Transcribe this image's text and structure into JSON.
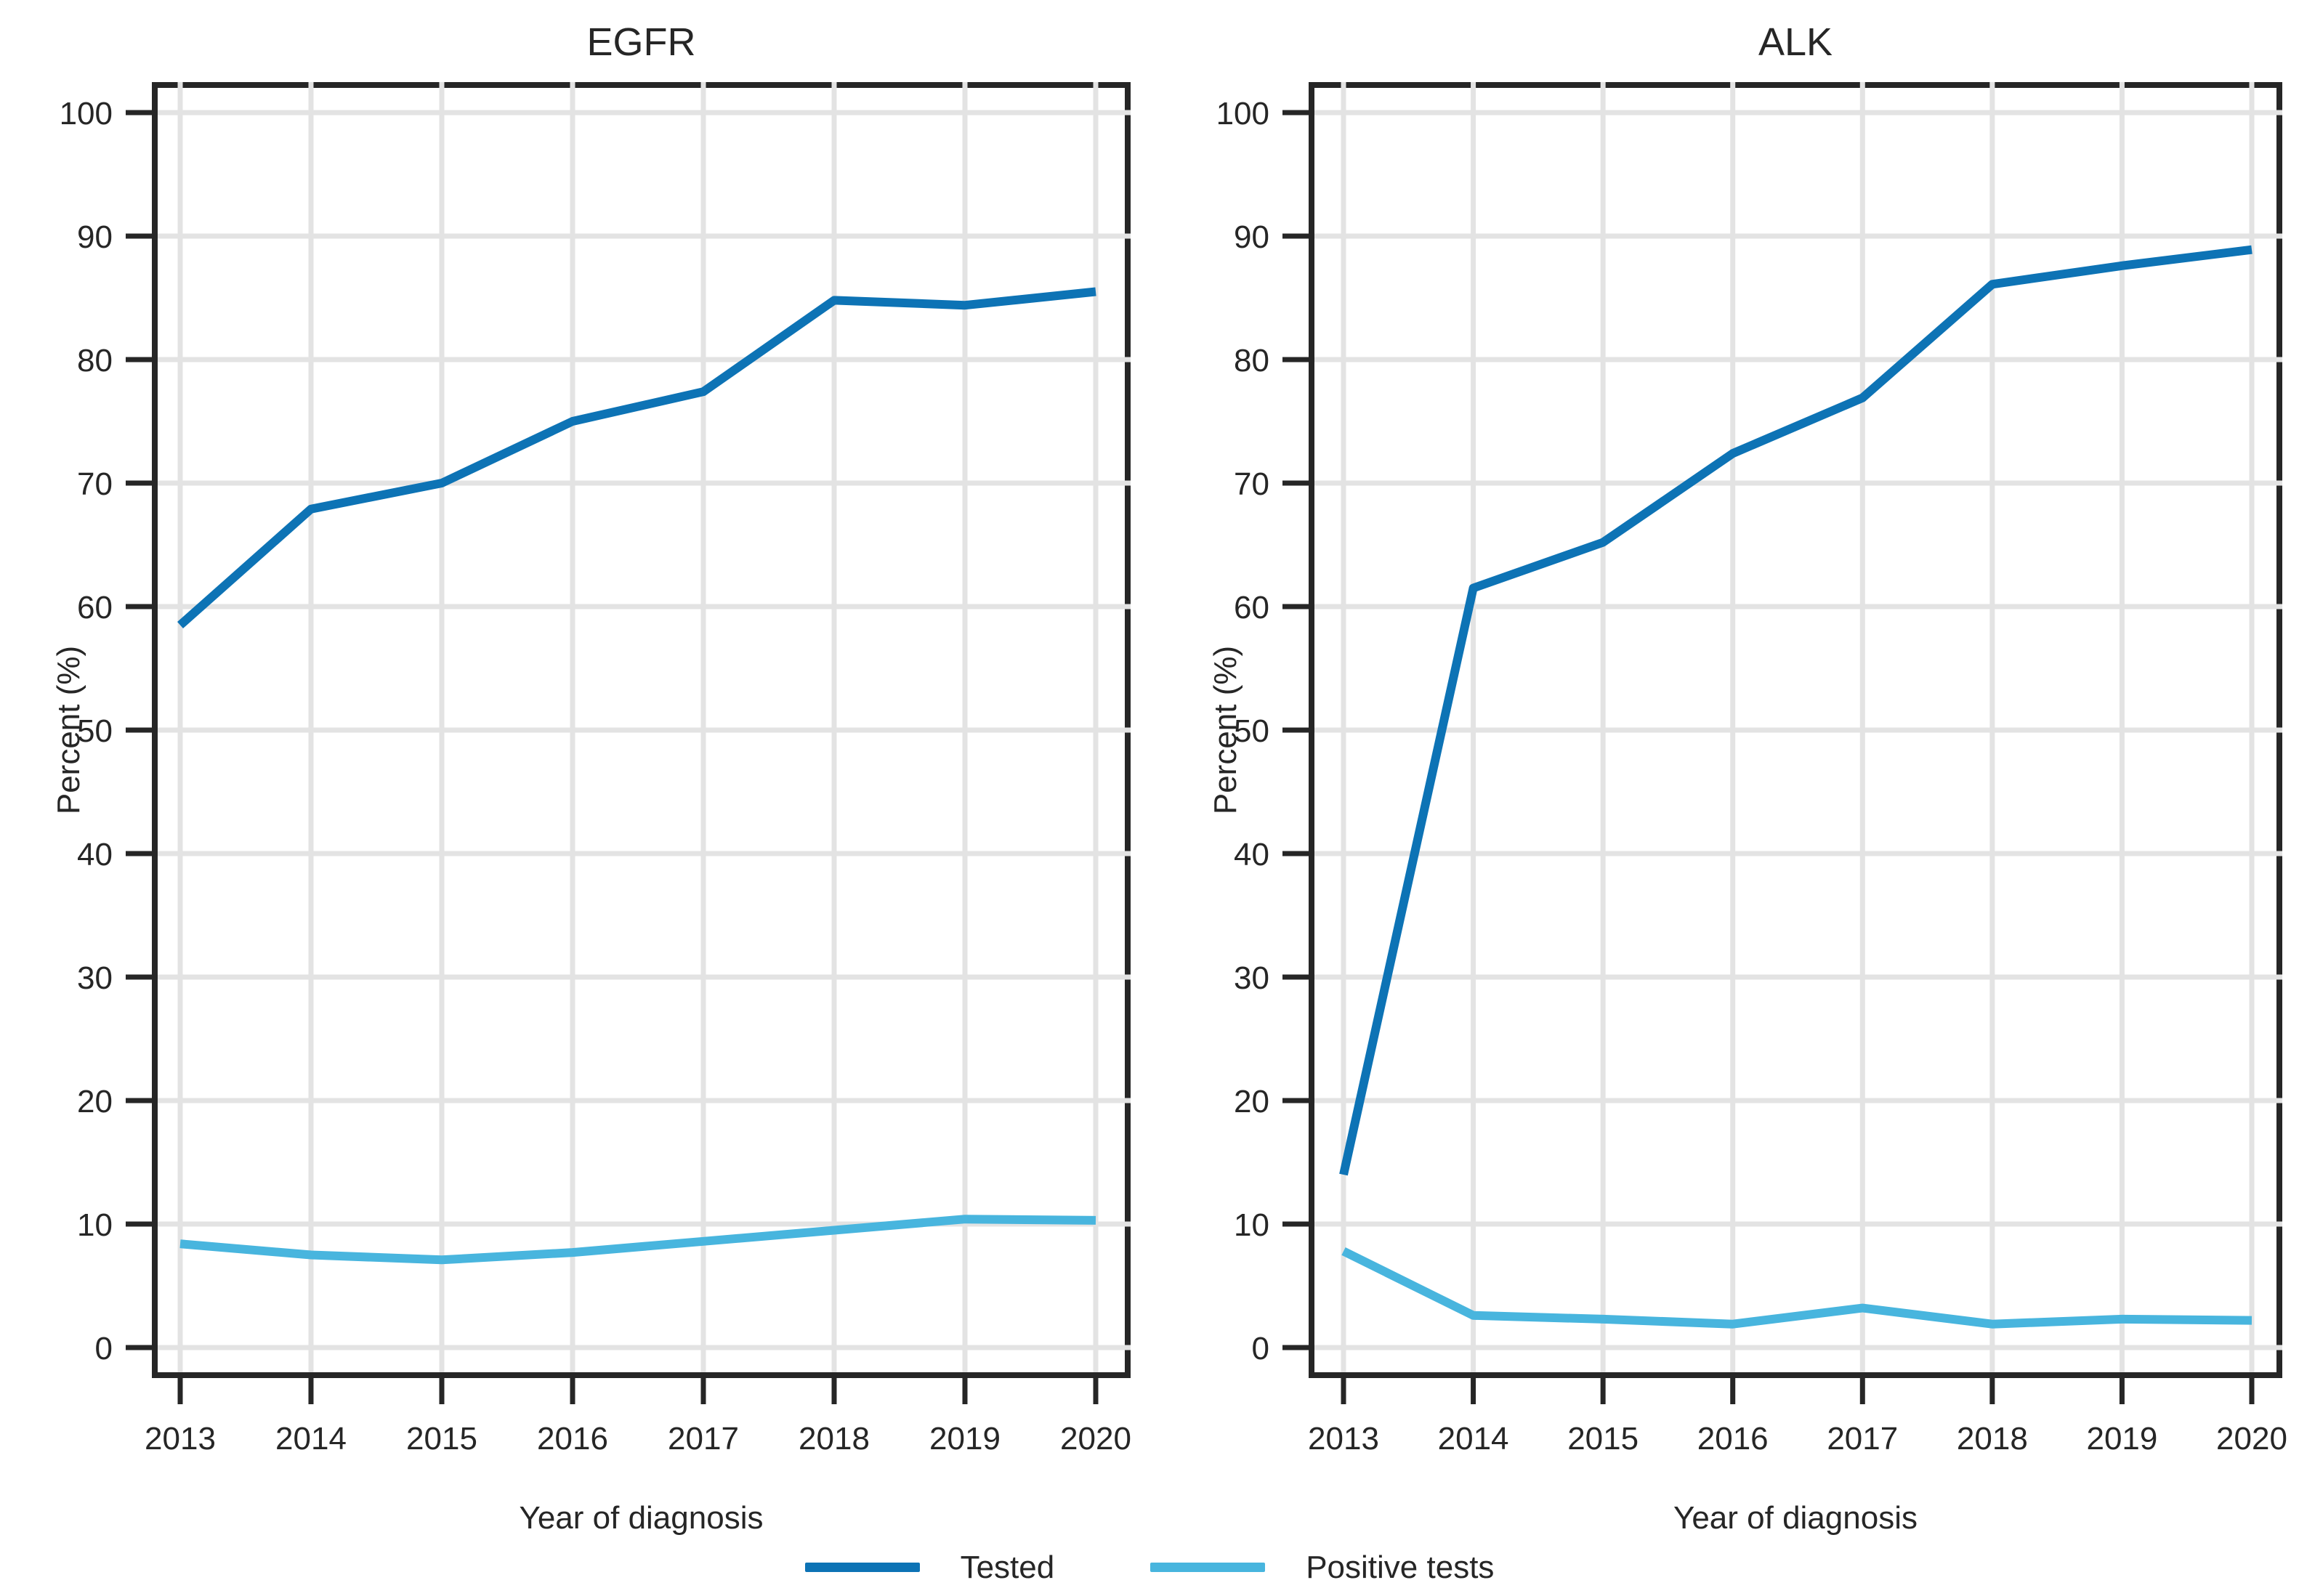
{
  "legend": {
    "items": [
      {
        "label": "Tested",
        "color": "#0d73b5"
      },
      {
        "label": "Positive tests",
        "color": "#48b5de"
      }
    ]
  },
  "colors": {
    "axis": "#262626",
    "grid": "#e3e3e3",
    "text": "#262626",
    "background": "#ffffff"
  },
  "chart_data": [
    {
      "type": "line",
      "title": "EGFR",
      "xlabel": "Year of diagnosis",
      "ylabel": "Percent (%)",
      "x": [
        2013,
        2014,
        2015,
        2016,
        2017,
        2018,
        2019,
        2020
      ],
      "series": [
        {
          "name": "Tested",
          "color": "#0d73b5",
          "values": [
            58.5,
            67.9,
            70.0,
            75.0,
            77.4,
            84.8,
            84.4,
            85.5
          ]
        },
        {
          "name": "Positive tests",
          "color": "#48b5de",
          "values": [
            8.4,
            7.5,
            7.1,
            7.7,
            8.6,
            9.5,
            10.4,
            10.3
          ]
        }
      ],
      "ylim": [
        0,
        100
      ],
      "yticks": [
        0,
        10,
        20,
        30,
        40,
        50,
        60,
        70,
        80,
        90,
        100
      ],
      "grid": true,
      "legend_position": "bottom"
    },
    {
      "type": "line",
      "title": "ALK",
      "xlabel": "Year of diagnosis",
      "ylabel": "Percent (%)",
      "x": [
        2013,
        2014,
        2015,
        2016,
        2017,
        2018,
        2019,
        2020
      ],
      "series": [
        {
          "name": "Tested",
          "color": "#0d73b5",
          "values": [
            14.0,
            61.5,
            65.2,
            72.4,
            76.9,
            86.1,
            87.6,
            88.9
          ]
        },
        {
          "name": "Positive tests",
          "color": "#48b5de",
          "values": [
            7.8,
            2.6,
            2.3,
            1.9,
            3.2,
            1.9,
            2.3,
            2.2
          ]
        }
      ],
      "ylim": [
        0,
        100
      ],
      "yticks": [
        0,
        10,
        20,
        30,
        40,
        50,
        60,
        70,
        80,
        90,
        100
      ],
      "grid": true,
      "legend_position": "bottom"
    }
  ]
}
